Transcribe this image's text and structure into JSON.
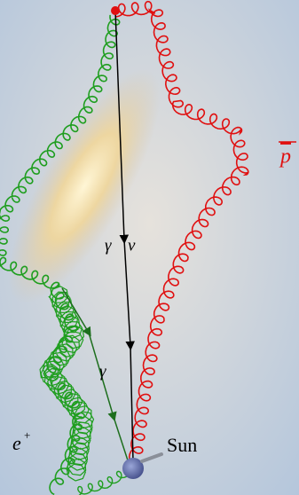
{
  "labels": {
    "photon_top": "γ",
    "neutrino": "ν",
    "antiproton": "p",
    "photon_bottom": "γ",
    "positron": "e",
    "positron_charge": "+",
    "sun": "Sun"
  }
}
